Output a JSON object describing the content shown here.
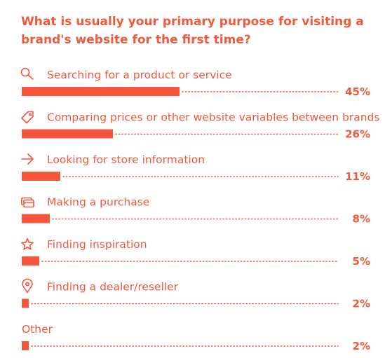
{
  "chart_data": {
    "type": "bar",
    "orientation": "horizontal",
    "title": "What is usually your primary purpose for visiting a brand's website for the first time?",
    "categories": [
      "Searching for a product or service",
      "Comparing prices or other website variables between brands",
      "Looking for store information",
      "Making a purchase",
      "Finding inspiration",
      "Finding a dealer/reseller",
      "Other"
    ],
    "icons": [
      "search-icon",
      "tag-icon",
      "arrow-right-icon",
      "card-icon",
      "star-icon",
      "map-pin-icon",
      ""
    ],
    "values": [
      45,
      26,
      11,
      8,
      5,
      2,
      2
    ],
    "value_labels": [
      "45%",
      "26%",
      "11%",
      "8%",
      "5%",
      "2%",
      "2%"
    ],
    "xlim": [
      0,
      100
    ],
    "bar_color": "#f4553b",
    "xlabel": "",
    "ylabel": ""
  }
}
